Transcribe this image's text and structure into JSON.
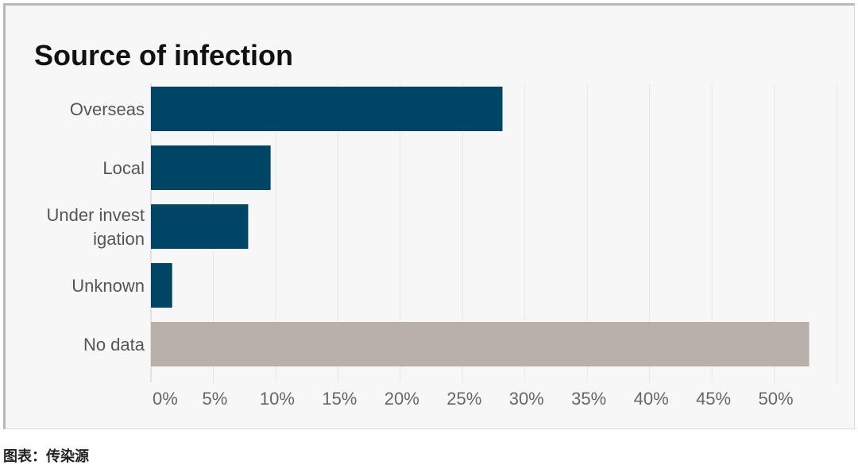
{
  "chart_data": {
    "type": "bar",
    "orientation": "horizontal",
    "title": "Source of infection",
    "categories": [
      [
        "Overseas"
      ],
      [
        "Local"
      ],
      [
        "Under invest",
        "igation"
      ],
      [
        "Unknown"
      ],
      [
        "No data"
      ]
    ],
    "values": [
      28.2,
      9.6,
      7.8,
      1.7,
      52.8
    ],
    "bar_colors": [
      "#004566",
      "#004566",
      "#004566",
      "#004566",
      "#b9b0ac"
    ],
    "xlim": [
      0,
      55
    ],
    "xticks": [
      0,
      5,
      10,
      15,
      20,
      25,
      30,
      35,
      40,
      45,
      50
    ],
    "xtick_labels": [
      "0%",
      "5%",
      "10%",
      "15%",
      "20%",
      "25%",
      "30%",
      "35%",
      "40%",
      "45%",
      "50%"
    ],
    "grid": true,
    "grid_color": "#e6e6e6",
    "background": "#f7f7f7"
  },
  "caption": "图表：传染源"
}
